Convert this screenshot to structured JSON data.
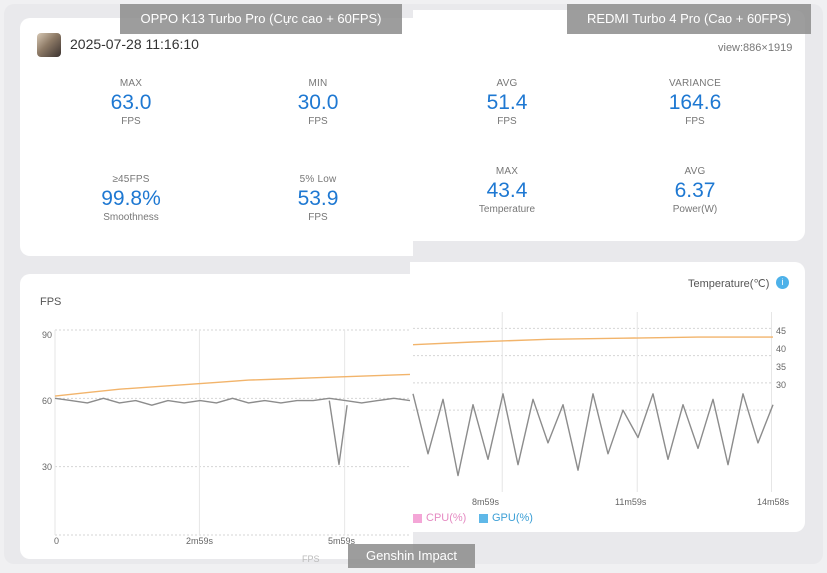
{
  "banners": {
    "left": "OPPO K13 Turbo Pro (Cực cao + 60FPS)",
    "right": "REDMI Turbo 4 Pro (Cao + 60FPS)",
    "bottom": "Genshin Impact"
  },
  "header": {
    "timestamp": "2025-07-28 11:16:10",
    "view_size": "view:886×1919"
  },
  "stats_left": [
    {
      "caption": "MAX",
      "value": "63.0",
      "unit": "FPS"
    },
    {
      "caption": "MIN",
      "value": "30.0",
      "unit": "FPS"
    },
    {
      "caption": "≥45FPS",
      "value": "99.8%",
      "unit": "Smoothness"
    },
    {
      "caption": "5% Low",
      "value": "53.9",
      "unit": "FPS"
    }
  ],
  "stats_right": [
    {
      "caption": "AVG",
      "value": "51.4",
      "unit": "FPS"
    },
    {
      "caption": "VARIANCE",
      "value": "164.6",
      "unit": "FPS"
    },
    {
      "caption": "MAX",
      "value": "43.4",
      "unit": "Temperature"
    },
    {
      "caption": "AVG",
      "value": "6.37",
      "unit": "Power(W)"
    }
  ],
  "colors": {
    "accent": "#1e78d2",
    "fps_line": "#8c8c8c",
    "temp_line": "#f2b46b",
    "cpu_legend": "#f4a6d7",
    "gpu_legend": "#5fb8e8",
    "info_icon": "#4db1e9"
  },
  "chart_left": {
    "y_axis_title": "FPS",
    "y_ticks": [
      "90",
      "60",
      "30"
    ],
    "x_ticks": [
      "0",
      "2m59s",
      "5m59s"
    ],
    "bottom_label_partial": "FPS"
  },
  "chart_right": {
    "temp_axis_title": "Temperature(℃)",
    "info_icon": "info-icon",
    "temp_ticks": [
      "45",
      "40",
      "35",
      "30"
    ],
    "x_ticks": [
      "8m59s",
      "11m59s",
      "14m58s"
    ],
    "legend": [
      "CPU(%)",
      "GPU(%)"
    ]
  },
  "chart_data": [
    {
      "type": "line",
      "title": "",
      "device": "OPPO K13 Turbo Pro",
      "xlabel": "",
      "ylabel": "FPS",
      "x_range_seconds": [
        0,
        440
      ],
      "ylim_fps": [
        0,
        90
      ],
      "x_tick_labels": [
        "0",
        "2m59s",
        "5m59s"
      ],
      "series": [
        {
          "name": "",
          "axis": "fps",
          "x_seconds": [
            0,
            20,
            40,
            60,
            80,
            100,
            120,
            140,
            160,
            180,
            200,
            220,
            240,
            260,
            280,
            300,
            320,
            340,
            360,
            380,
            400,
            420,
            440
          ],
          "values": [
            60,
            59,
            58,
            60,
            58,
            59,
            57,
            59,
            58,
            59,
            58,
            60,
            58,
            59,
            58,
            59,
            59,
            60,
            59,
            58,
            59,
            60,
            59
          ]
        },
        {
          "name": "",
          "axis": "fps",
          "x_seconds": [
            340,
            352,
            362
          ],
          "values": [
            59,
            31,
            57
          ]
        },
        {
          "name": "",
          "axis": "temperature",
          "x_seconds": [
            0,
            40,
            80,
            120,
            160,
            200,
            240,
            280,
            320,
            360,
            400,
            440
          ],
          "values": [
            61,
            62.5,
            64,
            65,
            66,
            67,
            68,
            68.5,
            69,
            69.5,
            70,
            70.5
          ]
        }
      ]
    },
    {
      "type": "line",
      "title": "",
      "device": "REDMI Turbo 4 Pro",
      "xlabel": "",
      "ylabel": "Temperature(℃)",
      "x_range_seconds": [
        420,
        900
      ],
      "ylim_temperature": [
        15,
        48
      ],
      "x_tick_labels": [
        "8m59s",
        "11m59s",
        "14m58s"
      ],
      "series": [
        {
          "name": "",
          "axis": "temperature",
          "x_seconds": [
            420,
            500,
            600,
            700,
            800,
            900
          ],
          "values": [
            42,
            42.5,
            43,
            43.2,
            43.4,
            43.4
          ]
        },
        {
          "name": "",
          "axis": "temperature",
          "x_seconds": [
            420,
            440,
            460,
            480,
            500,
            520,
            540,
            560,
            580,
            600,
            620,
            640,
            660,
            680,
            700,
            720,
            740,
            760,
            780,
            800,
            820,
            840,
            860,
            880,
            900
          ],
          "values": [
            33,
            22,
            32,
            18,
            31,
            21,
            33,
            20,
            32,
            24,
            31,
            19,
            33,
            22,
            30,
            25,
            33,
            21,
            31,
            23,
            32,
            20,
            33,
            24,
            31
          ]
        }
      ]
    }
  ]
}
